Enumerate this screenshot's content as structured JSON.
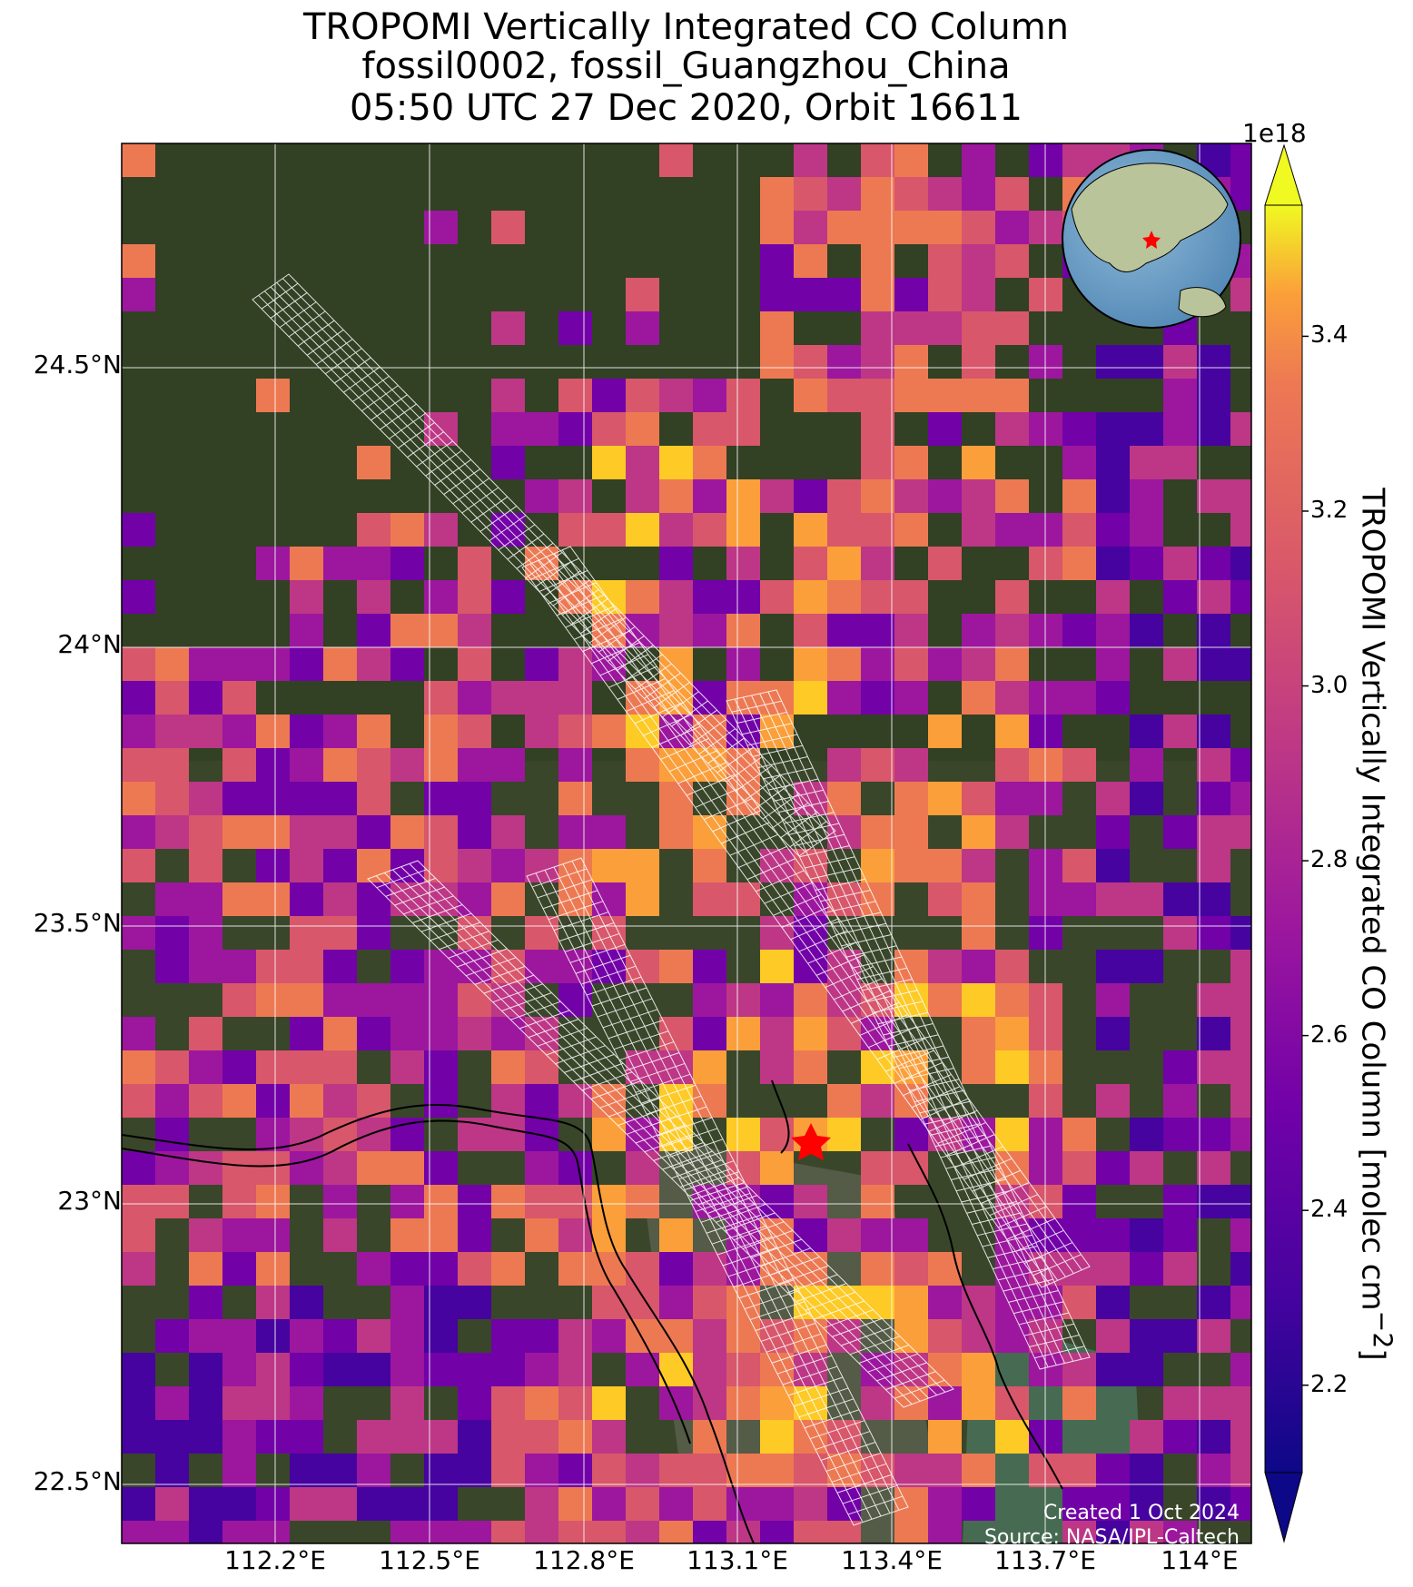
{
  "title": {
    "line1": "TROPOMI Vertically Integrated CO Column",
    "line2": "fossil0002, fossil_Guangzhou_China",
    "line3": "05:50 UTC 27 Dec 2020, Orbit 16611"
  },
  "map": {
    "lon_range": [
      111.9,
      114.1
    ],
    "lat_range": [
      22.42,
      24.9
    ],
    "lat_ticks": [
      {
        "value": 24.5,
        "label": "24.5°N"
      },
      {
        "value": 24.0,
        "label": "24°N"
      },
      {
        "value": 23.5,
        "label": "23.5°N"
      },
      {
        "value": 23.0,
        "label": "23°N"
      },
      {
        "value": 22.5,
        "label": "22.5°N"
      }
    ],
    "lon_ticks": [
      {
        "value": 112.2,
        "label": "112.2°E"
      },
      {
        "value": 112.5,
        "label": "112.5°E"
      },
      {
        "value": 112.8,
        "label": "112.8°E"
      },
      {
        "value": 113.1,
        "label": "113.1°E"
      },
      {
        "value": 113.4,
        "label": "113.4°E"
      },
      {
        "value": 113.7,
        "label": "113.7°E"
      },
      {
        "value": 114.0,
        "label": "114°E"
      }
    ],
    "gridlines": true,
    "basemap": "satellite-imagery",
    "target_marker": {
      "name": "star-marker",
      "lon": 113.26,
      "lat": 23.13,
      "color": "#ff0000"
    },
    "inset": "globe-locator-inset",
    "coastline_color": "#000000",
    "sounding_grid_color": "#ffffff"
  },
  "colorbar": {
    "label": "TROPOMI Vertically Integrated CO Column [molec cm",
    "label_superscript": "−2",
    "label_close": "]",
    "exponent": "1e18",
    "colormap": "plasma",
    "range": [
      2.1,
      3.55
    ],
    "extend": "both",
    "ticks": [
      {
        "value": 2.2,
        "label": "2.2"
      },
      {
        "value": 2.4,
        "label": "2.4"
      },
      {
        "value": 2.6,
        "label": "2.6"
      },
      {
        "value": 2.8,
        "label": "2.8"
      },
      {
        "value": 3.0,
        "label": "3.0"
      },
      {
        "value": 3.2,
        "label": "3.2"
      },
      {
        "value": 3.4,
        "label": "3.4"
      }
    ]
  },
  "credits": {
    "line1": "Created 1 Oct 2024",
    "line2": "Source: NASA/JPL-Caltech"
  }
}
